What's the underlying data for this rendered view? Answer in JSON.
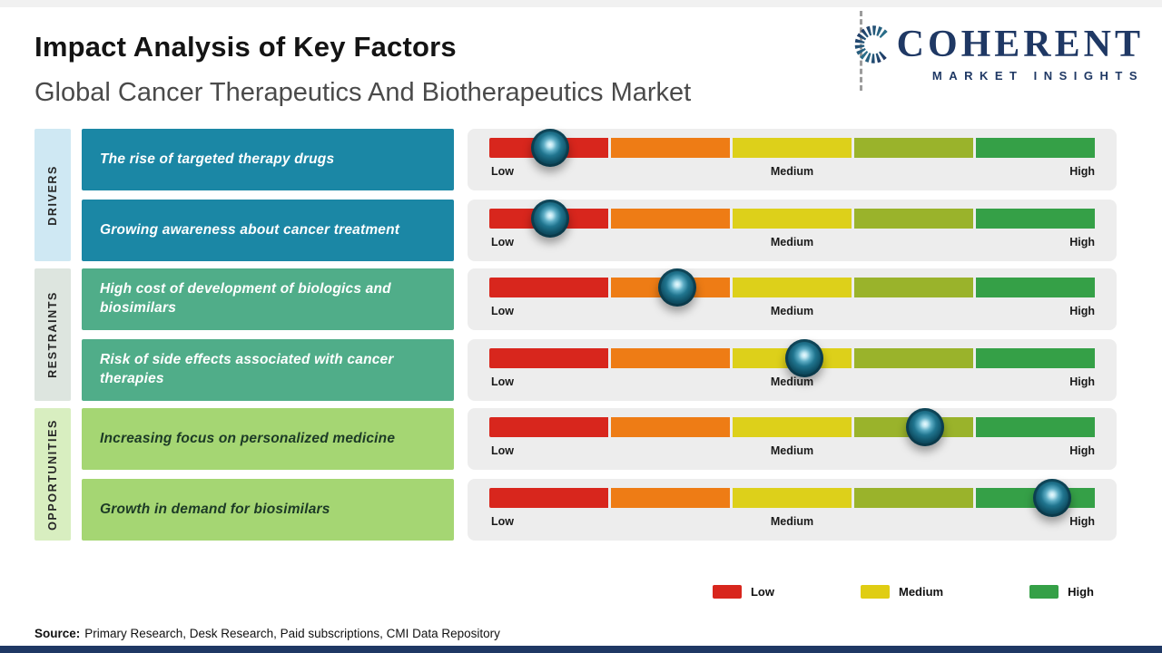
{
  "header": {
    "title": "Impact Analysis of Key Factors",
    "subtitle": "Global Cancer Therapeutics And Biotherapeutics Market"
  },
  "logo": {
    "name": "COHERENT",
    "tagline": "MARKET INSIGHTS"
  },
  "chart_data": {
    "type": "table",
    "title": "Impact Analysis of Key Factors",
    "scale_labels": [
      "Low",
      "Medium",
      "High"
    ],
    "scale_range": [
      "Low",
      "High"
    ],
    "groups": [
      {
        "label": "DRIVERS",
        "factors": [
          {
            "text": "The rise of targeted therapy drugs",
            "impact_percent": 10,
            "impact_level": "Low"
          },
          {
            "text": "Growing awareness about cancer treatment",
            "impact_percent": 10,
            "impact_level": "Low"
          }
        ]
      },
      {
        "label": "RESTRAINTS",
        "factors": [
          {
            "text": "High cost of development of biologics and biosimilars",
            "impact_percent": 31,
            "impact_level": "Low-Medium"
          },
          {
            "text": "Risk of side effects associated with cancer therapies",
            "impact_percent": 52,
            "impact_level": "Medium"
          }
        ]
      },
      {
        "label": "OPPORTUNITIES",
        "factors": [
          {
            "text": "Increasing focus on personalized medicine",
            "impact_percent": 72,
            "impact_level": "Medium-High"
          },
          {
            "text": "Growth in demand for biosimilars",
            "impact_percent": 93,
            "impact_level": "High"
          }
        ]
      }
    ]
  },
  "legend": [
    {
      "label": "Low",
      "color": "#d8261d"
    },
    {
      "label": "Medium",
      "color": "#e0cd13"
    },
    {
      "label": "High",
      "color": "#35a047"
    }
  ],
  "source": {
    "label": "Source:",
    "text": "Primary Research, Desk Research, Paid subscriptions, CMI Data Repository"
  },
  "colors": {
    "segments": [
      "#d8261d",
      "#ee7c15",
      "#ddd01a",
      "#9ab32b",
      "#35a047"
    ],
    "groups": [
      {
        "label_bg": "#cfe8f3",
        "box_bg": "#1b87a5",
        "box_fg": "#ffffff"
      },
      {
        "label_bg": "#dde5df",
        "box_bg": "#50ad89",
        "box_fg": "#ffffff"
      },
      {
        "label_bg": "#d8eec0",
        "box_bg": "#a5d673",
        "box_fg": "#1c3a26"
      }
    ],
    "accent_navy": "#1f3864",
    "marker": "#0f4f64",
    "panel_bg": "#ededed"
  }
}
